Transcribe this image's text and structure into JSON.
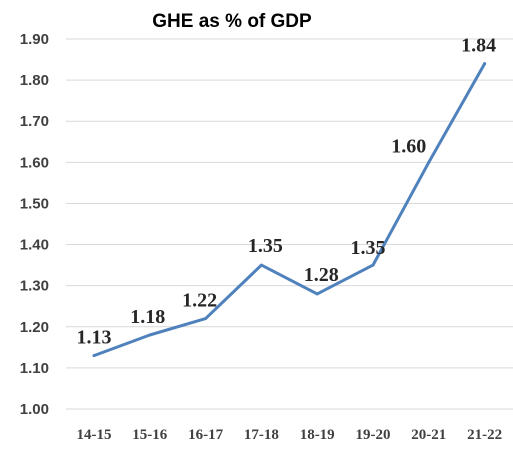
{
  "chart_data": {
    "type": "line",
    "title": "GHE as % of GDP",
    "xlabel": "",
    "ylabel": "",
    "categories": [
      "14-15",
      "15-16",
      "16-17",
      "17-18",
      "18-19",
      "19-20",
      "20-21",
      "21-22"
    ],
    "series": [
      {
        "values": [
          1.13,
          1.18,
          1.22,
          1.35,
          1.28,
          1.35,
          1.6,
          1.84
        ]
      }
    ],
    "data_labels": [
      "1.13",
      "1.18",
      "1.22",
      "1.35",
      "1.28",
      "1.35",
      "1.60",
      "1.84"
    ],
    "ylim": [
      1.0,
      1.9
    ],
    "yticks": [
      "1.00",
      "1.10",
      "1.20",
      "1.30",
      "1.40",
      "1.50",
      "1.60",
      "1.70",
      "1.80",
      "1.90"
    ],
    "grid": true,
    "legend": "none",
    "line_color": "#4f81bd"
  }
}
